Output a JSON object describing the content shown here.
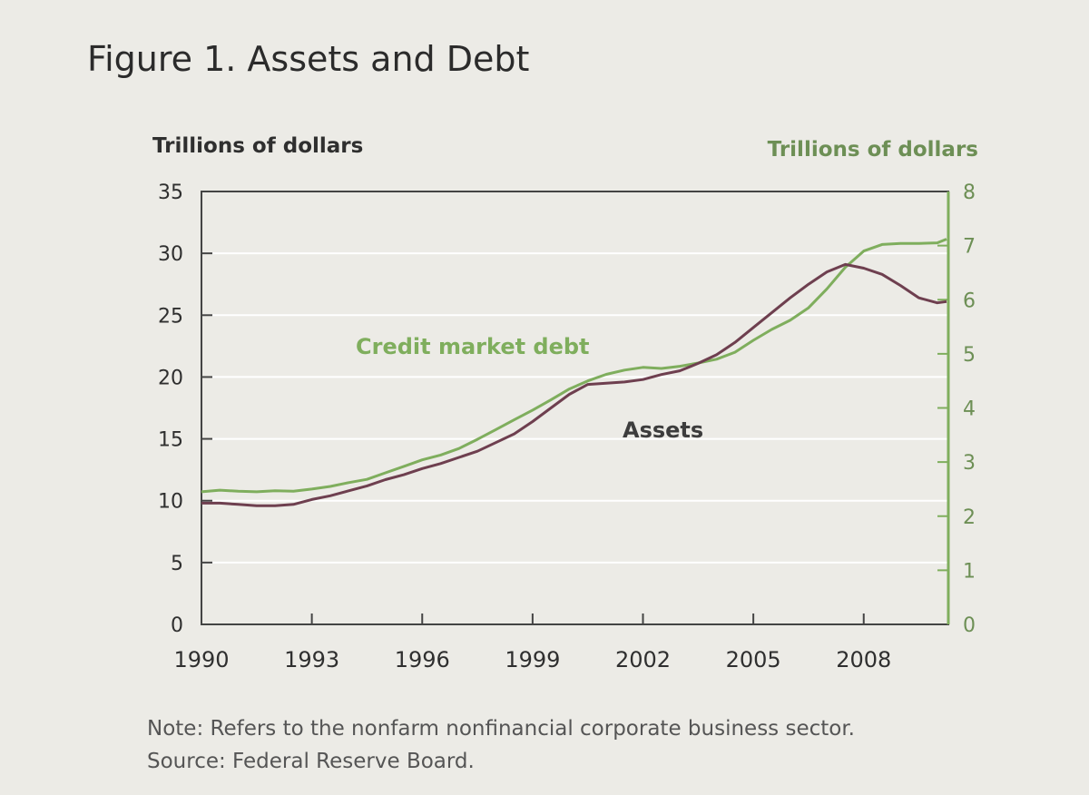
{
  "chart_data": {
    "type": "line",
    "title": "Figure 1. Assets and Debt",
    "ylabel_left": "Trillions of dollars",
    "ylabel_right": "Trillions of dollars",
    "xlim": [
      1990,
      2010.3
    ],
    "ylim_left": [
      0,
      35
    ],
    "ylim_right": [
      0,
      8
    ],
    "x_ticks": [
      "1990",
      "1993",
      "1996",
      "1999",
      "2002",
      "2005",
      "2008"
    ],
    "x_tick_values": [
      1990,
      1993,
      1996,
      1999,
      2002,
      2005,
      2008
    ],
    "y_ticks_left": [
      "0",
      "5",
      "10",
      "15",
      "20",
      "25",
      "30",
      "35"
    ],
    "y_tick_values_left": [
      0,
      5,
      10,
      15,
      20,
      25,
      30,
      35
    ],
    "y_ticks_right": [
      "0",
      "1",
      "2",
      "3",
      "4",
      "5",
      "6",
      "7",
      "8"
    ],
    "y_tick_values_right": [
      0,
      1,
      2,
      3,
      4,
      5,
      6,
      7,
      8
    ],
    "grid": true,
    "series": [
      {
        "name": "Credit market debt",
        "axis": "right",
        "color": "#7fae5d",
        "x": [
          1990,
          1990.5,
          1991,
          1991.5,
          1992,
          1992.5,
          1993,
          1993.5,
          1994,
          1994.5,
          1995,
          1995.5,
          1996,
          1996.5,
          1997,
          1997.5,
          1998,
          1998.5,
          1999,
          1999.5,
          2000,
          2000.5,
          2001,
          2001.5,
          2002,
          2002.5,
          2003,
          2003.5,
          2004,
          2004.5,
          2005,
          2005.5,
          2006,
          2006.5,
          2007,
          2007.5,
          2008,
          2008.5,
          2009,
          2009.5,
          2010,
          2010.25
        ],
        "y": [
          2.45,
          2.48,
          2.46,
          2.45,
          2.47,
          2.46,
          2.5,
          2.55,
          2.62,
          2.68,
          2.8,
          2.92,
          3.04,
          3.13,
          3.25,
          3.42,
          3.6,
          3.78,
          3.96,
          4.15,
          4.35,
          4.5,
          4.62,
          4.7,
          4.75,
          4.73,
          4.77,
          4.83,
          4.9,
          5.03,
          5.25,
          5.45,
          5.62,
          5.85,
          6.2,
          6.6,
          6.9,
          7.02,
          7.04,
          7.04,
          7.05,
          7.12
        ]
      },
      {
        "name": "Assets",
        "axis": "left",
        "color": "#6e3f4f",
        "x": [
          1990,
          1990.5,
          1991,
          1991.5,
          1992,
          1992.5,
          1993,
          1993.5,
          1994,
          1994.5,
          1995,
          1995.5,
          1996,
          1996.5,
          1997,
          1997.5,
          1998,
          1998.5,
          1999,
          1999.5,
          2000,
          2000.5,
          2001,
          2001.5,
          2002,
          2002.5,
          2003,
          2003.5,
          2004,
          2004.5,
          2005,
          2005.5,
          2006,
          2006.5,
          2007,
          2007.5,
          2008,
          2008.5,
          2009,
          2009.5,
          2010,
          2010.25
        ],
        "y": [
          9.8,
          9.8,
          9.7,
          9.6,
          9.6,
          9.7,
          10.1,
          10.4,
          10.8,
          11.2,
          11.7,
          12.1,
          12.6,
          13.0,
          13.5,
          14.0,
          14.7,
          15.4,
          16.4,
          17.5,
          18.6,
          19.4,
          19.5,
          19.6,
          19.8,
          20.2,
          20.5,
          21.1,
          21.8,
          22.8,
          24.0,
          25.2,
          26.4,
          27.5,
          28.5,
          29.1,
          28.8,
          28.3,
          27.4,
          26.4,
          26.0,
          26.1
        ]
      }
    ],
    "annotations": [
      {
        "text": "Credit market debt",
        "series": "Credit market debt"
      },
      {
        "text": "Assets",
        "series": "Assets"
      }
    ]
  },
  "footnotes": {
    "note": "Note: Refers to the nonfarm nonfinancial corporate business sector.",
    "source": "Source: Federal Reserve Board."
  },
  "colors": {
    "debt": "#7fae5d",
    "assets": "#6e3f4f",
    "grid": "#ffffff",
    "axis": "#444444",
    "background": "#ecebe6"
  }
}
